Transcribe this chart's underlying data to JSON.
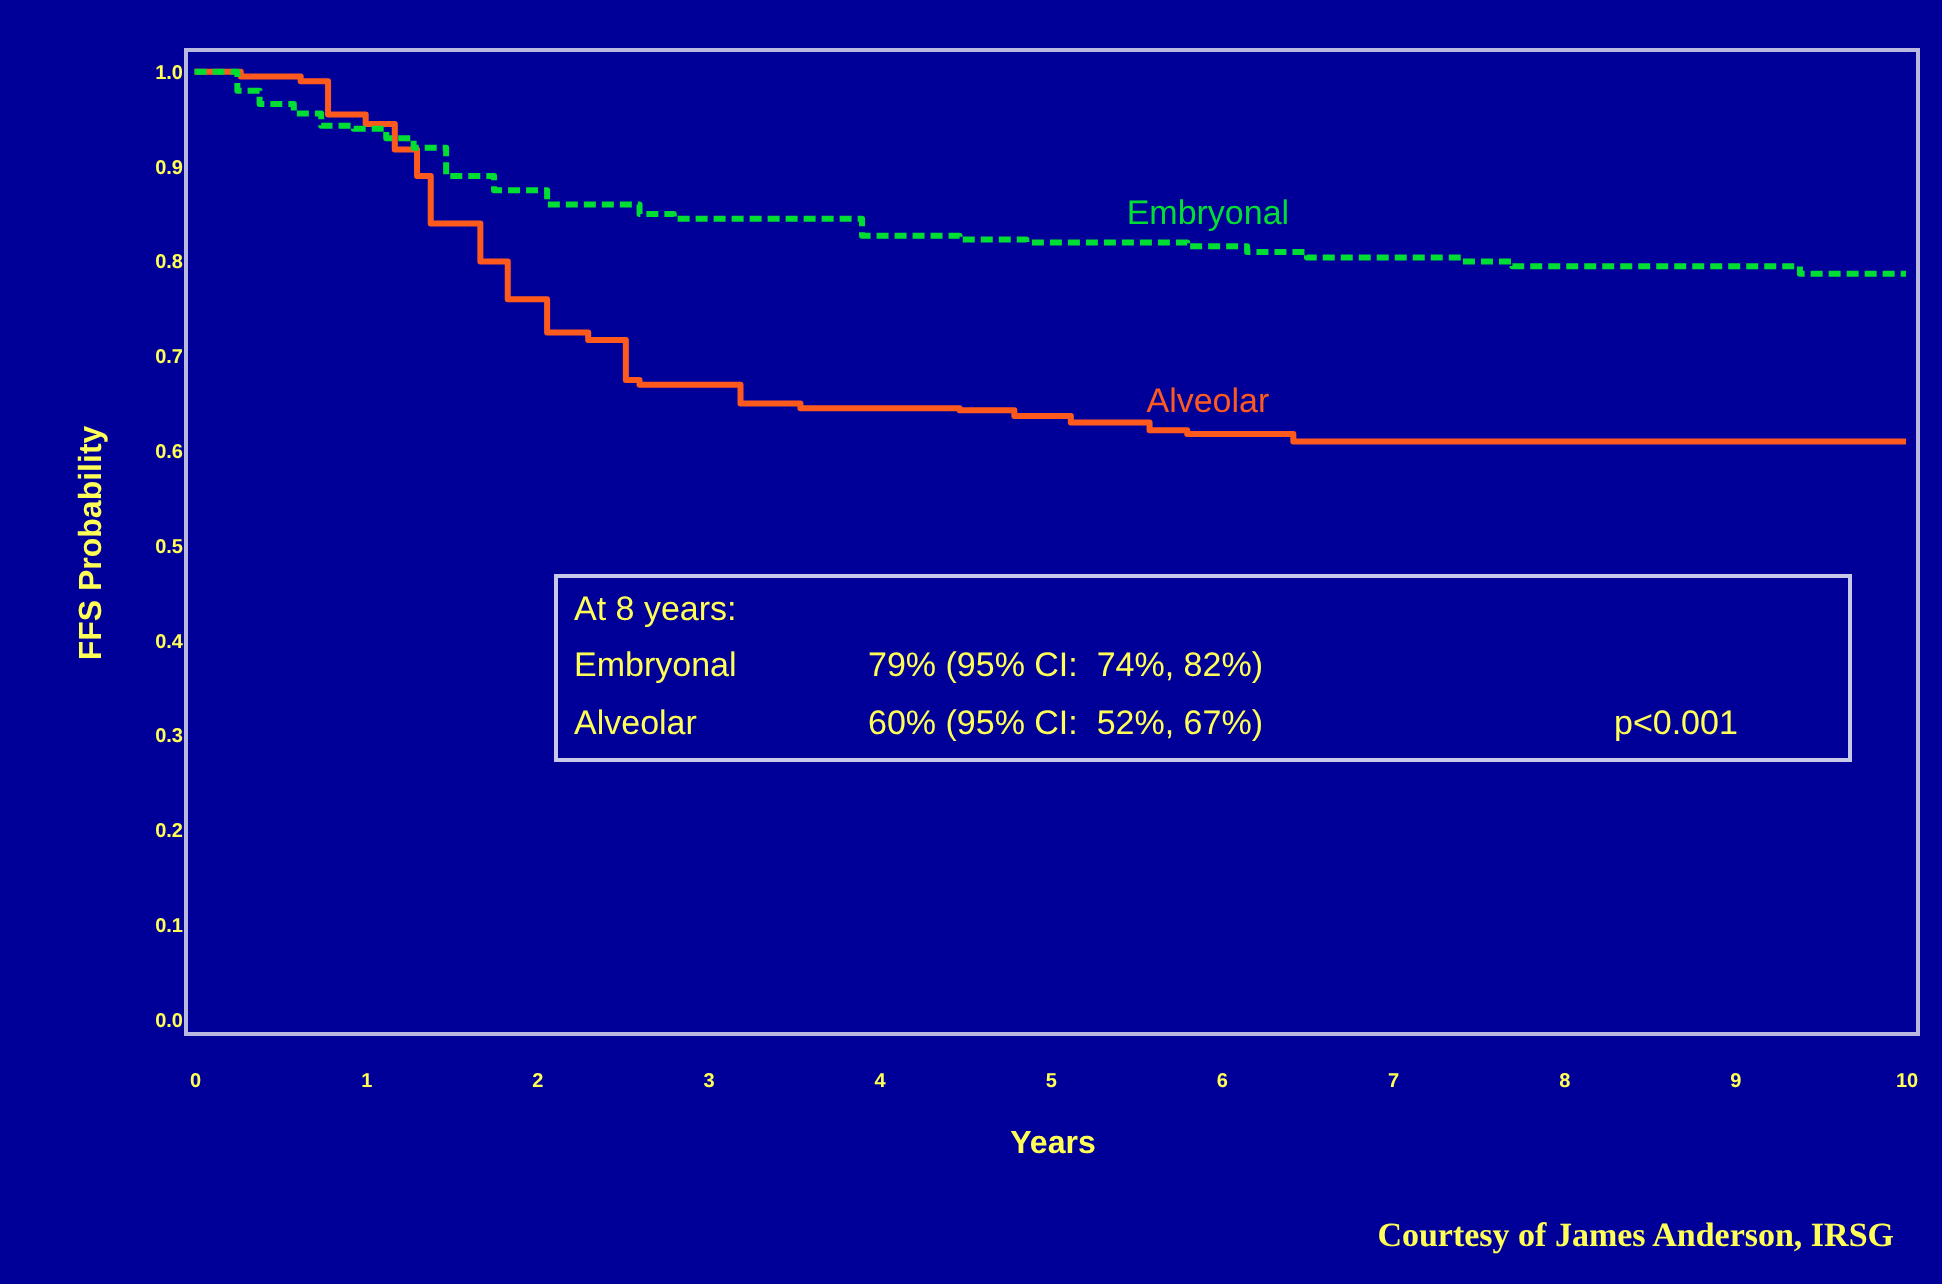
{
  "chart_data": {
    "type": "step",
    "xlabel": "Years",
    "ylabel": "FFS Probability",
    "xlim": [
      -0.05,
      10.07
    ],
    "ylim": [
      -0.015,
      1.023
    ],
    "xticks": [
      0,
      1,
      2,
      3,
      4,
      5,
      6,
      7,
      8,
      9,
      10
    ],
    "yticks": [
      {
        "value": 0,
        "label": "0.0"
      },
      0.1,
      0.2,
      0.3,
      0.4,
      0.5,
      0.6,
      0.7,
      0.8,
      0.9,
      {
        "value": 1,
        "label": "1.0"
      }
    ],
    "grid": false,
    "legend": false,
    "series": [
      {
        "name": "Embryonal",
        "color": "#00dd33",
        "line_style": "dashed",
        "x": [
          0,
          0.25,
          0.38,
          0.58,
          0.74,
          0.93,
          1.12,
          1.28,
          1.47,
          1.75,
          2.06,
          2.6,
          2.8,
          3.9,
          4.47,
          4.86,
          5.8,
          6.15,
          6.5,
          7.4,
          7.7,
          9.38,
          10
        ],
        "values": [
          1.0,
          0.98,
          0.966,
          0.956,
          0.943,
          0.94,
          0.93,
          0.92,
          0.89,
          0.875,
          0.86,
          0.85,
          0.845,
          0.827,
          0.823,
          0.82,
          0.816,
          0.81,
          0.804,
          0.8,
          0.795,
          0.787,
          0.787
        ]
      },
      {
        "name": "Alveolar",
        "color": "#ff5a1e",
        "line_style": "solid",
        "x": [
          0,
          0.27,
          0.62,
          0.78,
          1.0,
          1.17,
          1.3,
          1.38,
          1.55,
          1.67,
          1.83,
          2.06,
          2.3,
          2.52,
          2.6,
          3.19,
          3.54,
          4.47,
          4.79,
          5.12,
          5.58,
          5.8,
          6.42,
          10
        ],
        "values": [
          1.0,
          0.995,
          0.99,
          0.955,
          0.945,
          0.918,
          0.89,
          0.84,
          0.84,
          0.8,
          0.76,
          0.725,
          0.717,
          0.675,
          0.67,
          0.65,
          0.645,
          0.643,
          0.637,
          0.63,
          0.622,
          0.618,
          0.61,
          0.61
        ]
      }
    ],
    "annotations": [
      "At 8 years:",
      "Embryonal",
      "79% (95% CI:  74%, 82%)",
      "Alveolar",
      "60% (95% CI:  52%, 67%)",
      "p<0.001",
      "Courtesy of James Anderson, IRSG"
    ]
  }
}
